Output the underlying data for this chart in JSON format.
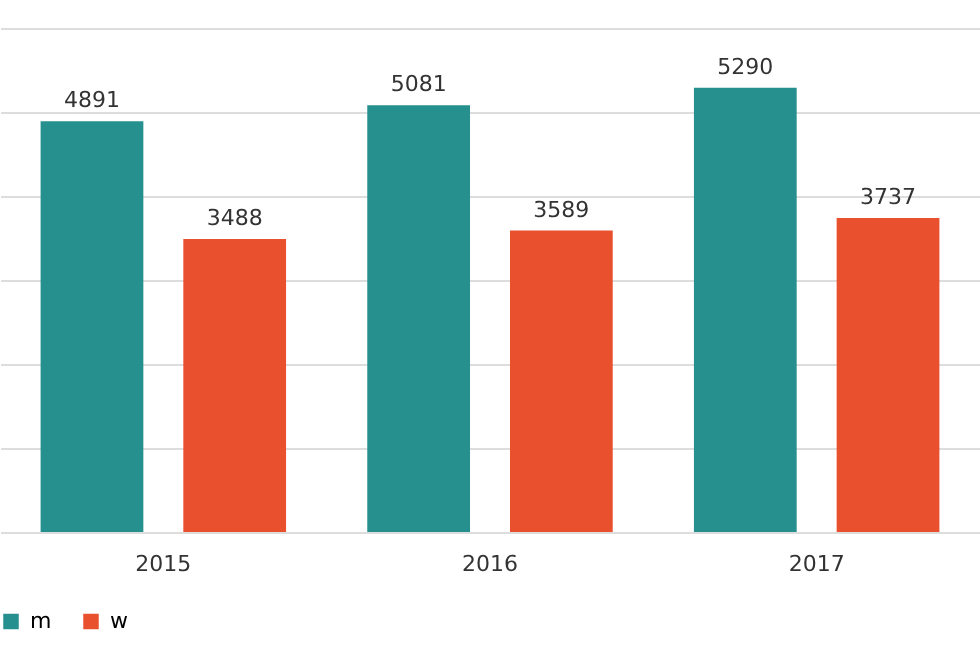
{
  "chart_data": {
    "type": "bar",
    "categories": [
      "2015",
      "2016",
      "2017"
    ],
    "series": [
      {
        "name": "m",
        "color": "#26908f",
        "values": [
          4891,
          5081,
          5290
        ]
      },
      {
        "name": "w",
        "color": "#e9512e",
        "values": [
          3488,
          3589,
          3737
        ]
      }
    ],
    "ylim": [
      0,
      6000
    ],
    "yticks": [
      {
        "value": 0,
        "label": null
      },
      {
        "value": 1000,
        "label": null
      },
      {
        "value": 2000,
        "label": null
      },
      {
        "value": 3000,
        "label": null
      },
      {
        "value": 4000,
        "label": null
      },
      {
        "value": 5000,
        "label": null
      },
      {
        "value": 6000,
        "label": null
      }
    ],
    "grid": "y",
    "legend": "bottom",
    "tick_labels": "x",
    "data_labels": true
  }
}
